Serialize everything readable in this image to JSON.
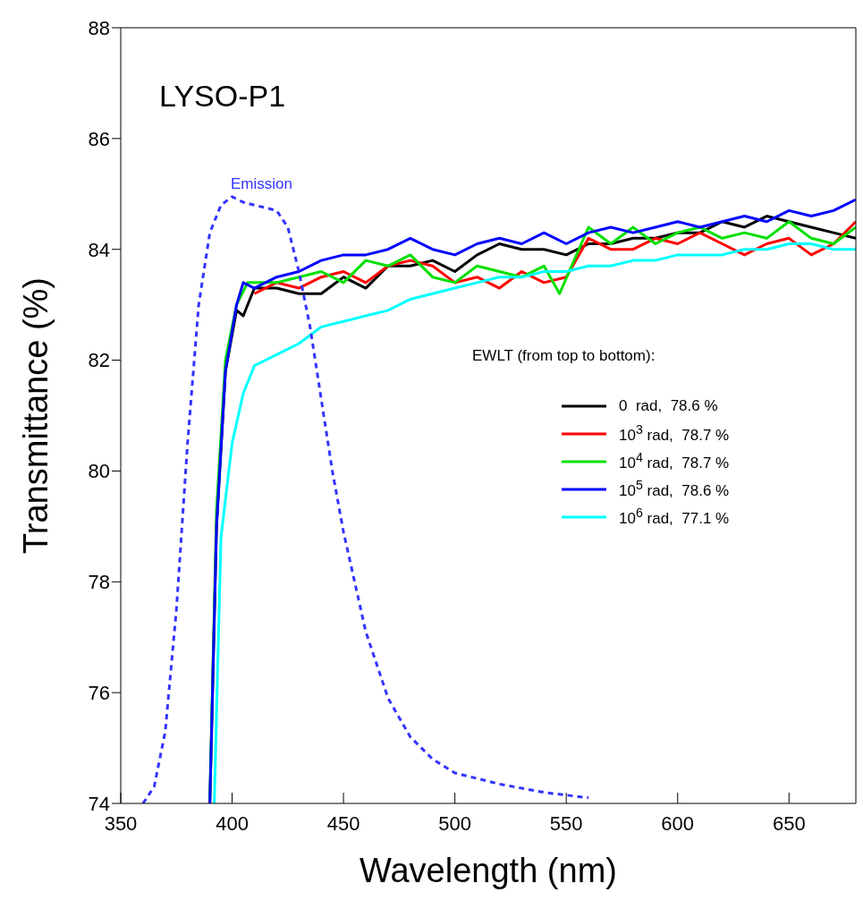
{
  "chart_data": {
    "type": "line",
    "title": "LYSO-P1",
    "xlabel": "Wavelength (nm)",
    "ylabel": "Transmittance (%)",
    "legend_title": "EWLT (from top to bottom):",
    "legend": "right",
    "grid": false,
    "marker": "none",
    "xlim": [
      350,
      680
    ],
    "xticks": [
      350,
      400,
      450,
      500,
      550,
      600,
      650
    ],
    "ylim": [
      74,
      88
    ],
    "yticks": [
      74,
      76,
      78,
      80,
      82,
      84,
      86,
      88
    ],
    "annotations": [
      "Emission"
    ],
    "series": [
      {
        "name": "0  rad,  78.6 %",
        "color": "#000000",
        "x": [
          390,
          393,
          397,
          402,
          405,
          410,
          420,
          430,
          440,
          450,
          460,
          470,
          480,
          490,
          500,
          510,
          520,
          530,
          540,
          550,
          560,
          570,
          580,
          590,
          600,
          610,
          620,
          630,
          640,
          650,
          660,
          670,
          680
        ],
        "values": [
          74,
          79,
          81.8,
          82.9,
          82.8,
          83.3,
          83.3,
          83.2,
          83.2,
          83.5,
          83.3,
          83.7,
          83.7,
          83.8,
          83.6,
          83.9,
          84.1,
          84,
          84,
          83.9,
          84.1,
          84.1,
          84.2,
          84.2,
          84.3,
          84.3,
          84.5,
          84.4,
          84.6,
          84.5,
          84.4,
          84.3,
          84.2
        ]
      },
      {
        "name": "10$^{3}$ rad,  78.7 %",
        "color": "#ff0000",
        "x": [
          410,
          420,
          430,
          440,
          450,
          460,
          470,
          480,
          490,
          500,
          510,
          520,
          530,
          540,
          550,
          560,
          570,
          580,
          590,
          600,
          610,
          620,
          630,
          640,
          650,
          660,
          670,
          680
        ],
        "values": [
          83.2,
          83.4,
          83.3,
          83.5,
          83.6,
          83.4,
          83.7,
          83.8,
          83.7,
          83.4,
          83.5,
          83.3,
          83.6,
          83.4,
          83.5,
          84.2,
          84,
          84,
          84.2,
          84.1,
          84.3,
          84.1,
          83.9,
          84.1,
          84.2,
          83.9,
          84.1,
          84.5
        ]
      },
      {
        "name": "10$^{4}$ rad,  78.7 %",
        "color": "#00e000",
        "x": [
          390,
          393,
          397,
          402,
          407,
          420,
          430,
          440,
          450,
          460,
          470,
          480,
          490,
          500,
          510,
          520,
          530,
          540,
          547,
          560,
          570,
          580,
          590,
          600,
          610,
          620,
          630,
          640,
          650,
          660,
          670,
          680
        ],
        "values": [
          74,
          79.3,
          82,
          83,
          83.4,
          83.4,
          83.5,
          83.6,
          83.4,
          83.8,
          83.7,
          83.9,
          83.5,
          83.4,
          83.7,
          83.6,
          83.5,
          83.7,
          83.2,
          84.4,
          84.1,
          84.4,
          84.1,
          84.3,
          84.4,
          84.2,
          84.3,
          84.2,
          84.5,
          84.2,
          84.1,
          84.4
        ]
      },
      {
        "name": "10$^{5}$ rad,  78.6 %",
        "color": "#0000ff",
        "x": [
          390,
          393,
          397,
          402,
          405,
          410,
          420,
          430,
          440,
          450,
          460,
          470,
          480,
          490,
          500,
          510,
          520,
          530,
          540,
          550,
          560,
          570,
          580,
          590,
          600,
          610,
          620,
          630,
          640,
          650,
          660,
          670,
          680
        ],
        "values": [
          74,
          79,
          81.8,
          83,
          83.4,
          83.3,
          83.5,
          83.6,
          83.8,
          83.9,
          83.9,
          84,
          84.2,
          84,
          83.9,
          84.1,
          84.2,
          84.1,
          84.3,
          84.1,
          84.3,
          84.4,
          84.3,
          84.4,
          84.5,
          84.4,
          84.5,
          84.6,
          84.5,
          84.7,
          84.6,
          84.7,
          84.9
        ]
      },
      {
        "name": "10$^{6}$ rad,  77.1 %",
        "color": "#00ffff",
        "x": [
          392,
          395,
          400,
          405,
          410,
          420,
          430,
          440,
          450,
          460,
          470,
          480,
          490,
          500,
          510,
          520,
          530,
          540,
          550,
          560,
          570,
          580,
          590,
          600,
          610,
          620,
          630,
          640,
          650,
          660,
          670,
          680
        ],
        "values": [
          74,
          78.8,
          80.5,
          81.4,
          81.9,
          82.1,
          82.3,
          82.6,
          82.7,
          82.8,
          82.9,
          83.1,
          83.2,
          83.3,
          83.4,
          83.5,
          83.5,
          83.6,
          83.6,
          83.7,
          83.7,
          83.8,
          83.8,
          83.9,
          83.9,
          83.9,
          84,
          84,
          84.1,
          84.1,
          84,
          84
        ]
      },
      {
        "color": "#3333ff",
        "line_style": "dashed",
        "x": [
          360,
          365,
          370,
          375,
          380,
          385,
          390,
          395,
          400,
          405,
          410,
          415,
          420,
          425,
          430,
          435,
          440,
          445,
          450,
          460,
          470,
          480,
          490,
          500,
          520,
          540,
          560
        ],
        "values": [
          74,
          74.3,
          75.3,
          77.5,
          80.5,
          83,
          84.3,
          84.8,
          84.95,
          84.85,
          84.8,
          84.75,
          84.7,
          84.4,
          83.6,
          82.6,
          81.3,
          80,
          78.9,
          77.1,
          75.9,
          75.2,
          74.8,
          74.55,
          74.35,
          74.2,
          74.1
        ]
      }
    ]
  }
}
